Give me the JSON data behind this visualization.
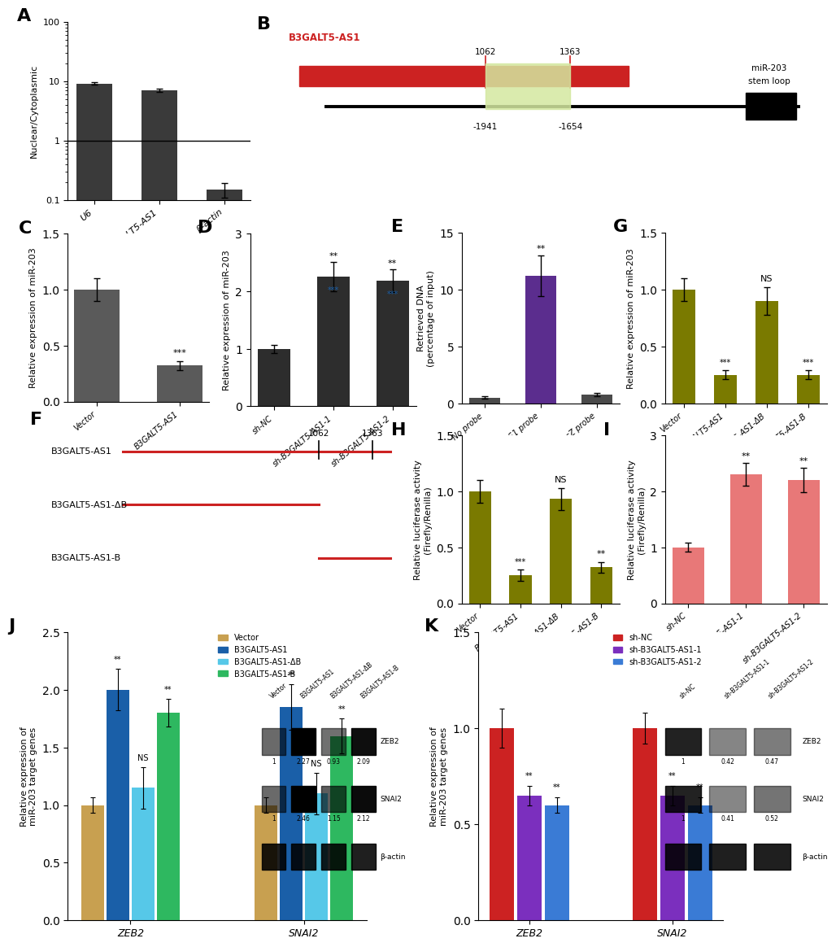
{
  "panel_A": {
    "categories": [
      "U6",
      "B3GALT5-AS1",
      "β-actin"
    ],
    "values": [
      9.2,
      7.0,
      0.15
    ],
    "errors": [
      0.5,
      0.4,
      0.04
    ],
    "color": "#3a3a3a",
    "ylabel": "Nuclear/Cytoplasmic"
  },
  "panel_C": {
    "categories": [
      "Vector",
      "B3GALT5-AS1"
    ],
    "values": [
      1.0,
      0.32
    ],
    "errors": [
      0.1,
      0.04
    ],
    "color": "#5a5a5a",
    "ylabel": "Relative expression of miR-203",
    "ylim": [
      0,
      1.5
    ],
    "significance": [
      "",
      "***"
    ]
  },
  "panel_D": {
    "categories": [
      "sh-NC",
      "sh-B3GALT5-AS1-1",
      "sh-B3GALT5-AS1-2"
    ],
    "values": [
      1.0,
      2.25,
      2.18
    ],
    "errors": [
      0.07,
      0.25,
      0.2
    ],
    "color": "#2d2d2d",
    "ylabel": "Relative expression of miR-203",
    "ylim": [
      0,
      3
    ],
    "sig_top": [
      "",
      "**",
      "**"
    ],
    "sig_bot": [
      "",
      "***",
      "***"
    ]
  },
  "panel_E": {
    "categories": [
      "No probe",
      "B3GALT5-AS1 probe",
      "LacZ probe"
    ],
    "values": [
      0.5,
      11.2,
      0.8
    ],
    "errors": [
      0.1,
      1.8,
      0.15
    ],
    "colors": [
      "#4a4a4a",
      "#5b2d8e",
      "#4a4a4a"
    ],
    "ylabel": "Retrieved DNA\n(percentage of input)",
    "ylim": [
      0,
      15
    ],
    "significance": [
      "",
      "**",
      ""
    ]
  },
  "panel_G": {
    "categories": [
      "Vector",
      "B3GALT5-AS1",
      "B3GALT5-AS1-ΔB",
      "B3GALT5-AS1-B"
    ],
    "values": [
      1.0,
      0.25,
      0.9,
      0.25
    ],
    "errors": [
      0.1,
      0.04,
      0.12,
      0.04
    ],
    "color": "#7a7a00",
    "ylabel": "Relative expression of miR-203",
    "ylim": [
      0,
      1.5
    ],
    "significance": [
      "",
      "***",
      "NS",
      "***"
    ]
  },
  "panel_H": {
    "categories": [
      "Vector",
      "B3GALT5-AS1",
      "B3GALT5-AS1-ΔB",
      "B3GALT5-AS1-B"
    ],
    "values": [
      1.0,
      0.25,
      0.93,
      0.32
    ],
    "errors": [
      0.1,
      0.05,
      0.1,
      0.05
    ],
    "color": "#7a7a00",
    "ylabel": "Relative luciferase activity\n(Firefly/Renilla)",
    "ylim": [
      0,
      1.5
    ],
    "significance": [
      "",
      "***",
      "NS",
      "**"
    ]
  },
  "panel_I": {
    "categories": [
      "sh-NC",
      "sh-B3GALT5-AS1-1",
      "sh-B3GALT5-AS1-2"
    ],
    "values": [
      1.0,
      2.3,
      2.2
    ],
    "errors": [
      0.08,
      0.2,
      0.22
    ],
    "color": "#e87878",
    "ylabel": "Relative luciferase activity\n(Firefly/Renilla)",
    "ylim": [
      0,
      3
    ],
    "significance": [
      "",
      "**",
      "**"
    ]
  },
  "panel_J": {
    "gene_groups": [
      "ZEB2",
      "SNAI2"
    ],
    "categories": [
      "Vector",
      "B3GALT5-AS1",
      "B3GALT5-AS1-ΔB",
      "B3GALT5-AS1-B"
    ],
    "values": {
      "ZEB2": [
        1.0,
        2.0,
        1.15,
        1.8
      ],
      "SNAI2": [
        1.0,
        1.85,
        1.1,
        1.6
      ]
    },
    "errors": {
      "ZEB2": [
        0.07,
        0.18,
        0.18,
        0.12
      ],
      "SNAI2": [
        0.07,
        0.2,
        0.18,
        0.15
      ]
    },
    "colors": [
      "#c8a050",
      "#1a5fa8",
      "#56c8e8",
      "#2eb860"
    ],
    "ylabel": "Relative expression of\nmiR-203 target genes",
    "ylim": [
      0,
      2.5
    ],
    "significance_ZEB2": [
      "",
      "**",
      "NS",
      "**"
    ],
    "significance_SNAI2": [
      "",
      "**",
      "NS",
      "**"
    ],
    "legend_labels": [
      "Vector",
      "B3GALT5-AS1",
      "B3GALT5-AS1-ΔB",
      "B3GALT5-AS1-B"
    ],
    "blot_labels_col": [
      "Vector",
      "B3GALT5-AS1",
      "B3GALT5-AS1-ΔB",
      "B3GALT5-AS1-B"
    ],
    "blot_ZEB2_nums": [
      1,
      2.27,
      0.93,
      2.09
    ],
    "blot_SNAI2_nums": [
      1,
      2.46,
      1.15,
      2.12
    ]
  },
  "panel_K": {
    "gene_groups": [
      "ZEB2",
      "SNAI2"
    ],
    "categories": [
      "sh-NC",
      "sh-B3GALT5-AS1-1",
      "sh-B3GALT5-AS1-2"
    ],
    "values": {
      "ZEB2": [
        1.0,
        0.65,
        0.6
      ],
      "SNAI2": [
        1.0,
        0.65,
        0.6
      ]
    },
    "errors": {
      "ZEB2": [
        0.1,
        0.05,
        0.04
      ],
      "SNAI2": [
        0.08,
        0.05,
        0.04
      ]
    },
    "colors": [
      "#cc2222",
      "#7b2fbe",
      "#3a7bd5"
    ],
    "ylabel": "Relative expression of\nmiR-203 target genes",
    "ylim": [
      0,
      1.5
    ],
    "significance_ZEB2": [
      "",
      "**",
      "**"
    ],
    "significance_SNAI2": [
      "",
      "**",
      "**"
    ],
    "legend_labels": [
      "sh-NC",
      "sh-B3GALT5-AS1-1",
      "sh-B3GALT5-AS1-2"
    ],
    "blot_ZEB2_nums": [
      1,
      0.42,
      0.47
    ],
    "blot_SNAI2_nums": [
      1,
      0.41,
      0.52
    ]
  },
  "background_color": "#ffffff",
  "panel_label_fontsize": 16,
  "axis_label_fontsize": 8,
  "tick_fontsize": 8
}
